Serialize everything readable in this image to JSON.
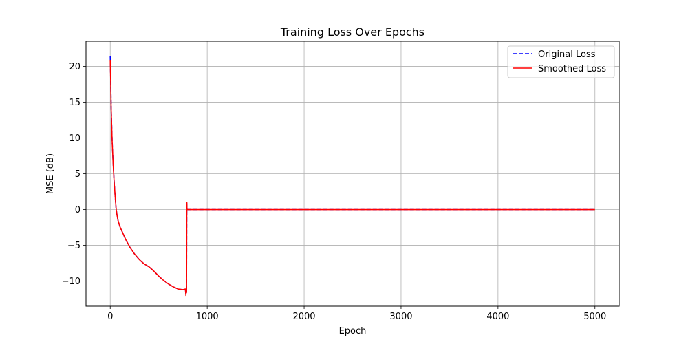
{
  "chart_data": {
    "type": "line",
    "title": "Training Loss Over Epochs",
    "xlabel": "Epoch",
    "ylabel": "MSE (dB)",
    "xlim": [
      -250,
      5250
    ],
    "ylim": [
      -13.5,
      23.5
    ],
    "xticks": [
      0,
      1000,
      2000,
      3000,
      4000,
      5000
    ],
    "xtick_labels": [
      "0",
      "1000",
      "2000",
      "3000",
      "4000",
      "5000"
    ],
    "yticks": [
      -10,
      -5,
      0,
      5,
      10,
      15,
      20
    ],
    "ytick_labels": [
      "−10",
      "−5",
      "0",
      "5",
      "10",
      "15",
      "20"
    ],
    "grid": true,
    "legend_position": "top-right",
    "series": [
      {
        "name": "Original Loss",
        "color": "#0000ff",
        "style": "dashed",
        "x": [
          0,
          5,
          10,
          20,
          30,
          40,
          50,
          60,
          70,
          80,
          100,
          130,
          160,
          200,
          250,
          300,
          350,
          400,
          450,
          500,
          550,
          600,
          650,
          700,
          750,
          775,
          780,
          784,
          785,
          786,
          787,
          789,
          790,
          791,
          792,
          795,
          800,
          1000,
          2000,
          3000,
          4000,
          5000
        ],
        "y": [
          21.4,
          18.0,
          14.0,
          9.5,
          6.5,
          4.0,
          2.0,
          0.2,
          -0.8,
          -1.5,
          -2.4,
          -3.3,
          -4.2,
          -5.2,
          -6.2,
          -7.0,
          -7.6,
          -8.0,
          -8.6,
          -9.3,
          -9.9,
          -10.4,
          -10.8,
          -11.1,
          -11.2,
          -11.1,
          -11.9,
          -11.3,
          -11.6,
          -10.8,
          -11.5,
          -1.0,
          0.9,
          0.3,
          0.0,
          0.0,
          0.0,
          0.0,
          0.0,
          0.0,
          0.0,
          0.0
        ]
      },
      {
        "name": "Smoothed Loss",
        "color": "#ff0000",
        "style": "solid",
        "x": [
          0,
          5,
          10,
          20,
          30,
          40,
          50,
          60,
          70,
          80,
          100,
          130,
          160,
          200,
          250,
          300,
          350,
          400,
          450,
          500,
          550,
          600,
          650,
          700,
          750,
          775,
          780,
          784,
          785,
          786,
          787,
          789,
          790,
          791,
          792,
          795,
          800,
          1000,
          2000,
          3000,
          4000,
          5000
        ],
        "y": [
          20.9,
          17.8,
          13.8,
          9.4,
          6.4,
          3.9,
          2.0,
          0.2,
          -0.8,
          -1.5,
          -2.4,
          -3.3,
          -4.2,
          -5.2,
          -6.2,
          -7.0,
          -7.6,
          -8.0,
          -8.6,
          -9.3,
          -9.9,
          -10.4,
          -10.8,
          -11.1,
          -11.2,
          -11.1,
          -12.0,
          -11.3,
          -11.6,
          -10.9,
          -11.6,
          -1.2,
          1.0,
          0.3,
          0.0,
          0.0,
          0.0,
          0.0,
          0.0,
          0.0,
          0.0,
          0.0
        ]
      }
    ]
  }
}
